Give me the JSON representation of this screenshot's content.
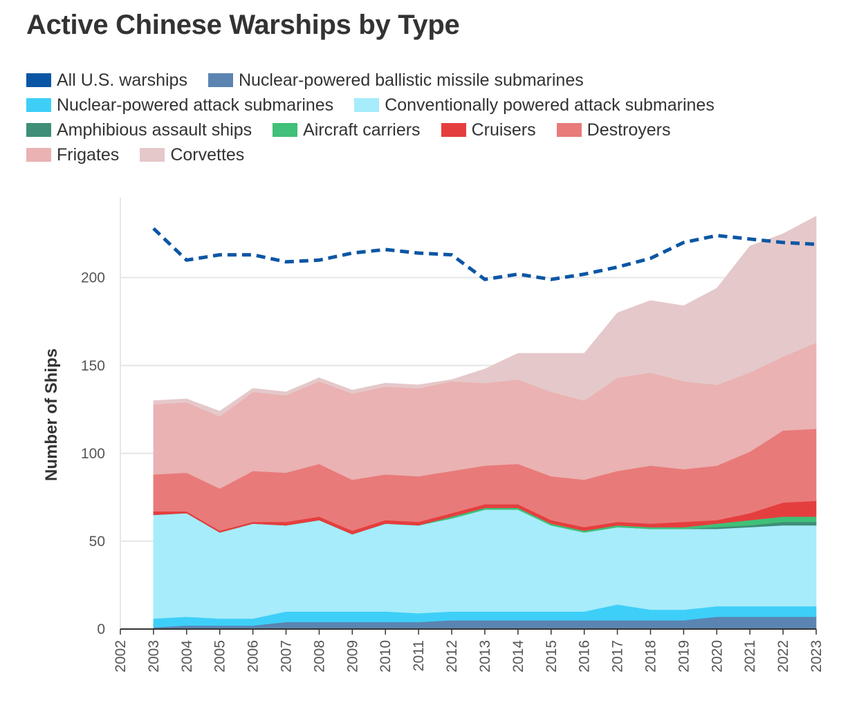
{
  "title": "Active Chinese Warships by Type",
  "legend": [
    {
      "label": "All U.S. warships",
      "color": "#0b56a4"
    },
    {
      "label": "Nuclear-powered ballistic missile submarines",
      "color": "#5b84b1"
    },
    {
      "label": "Nuclear-powered attack submarines",
      "color": "#3ecff8"
    },
    {
      "label": "Conventionally powered attack submarines",
      "color": "#a6ecfb"
    },
    {
      "label": "Amphibious assault ships",
      "color": "#3e8e78"
    },
    {
      "label": "Aircraft carriers",
      "color": "#40c078"
    },
    {
      "label": "Cruisers",
      "color": "#e53e3e"
    },
    {
      "label": "Destroyers",
      "color": "#e97a7a"
    },
    {
      "label": "Frigates",
      "color": "#eab2b2"
    },
    {
      "label": "Corvettes",
      "color": "#e5c8ca"
    }
  ],
  "chart_data": {
    "type": "area",
    "title": "Active Chinese Warships by Type",
    "xlabel": "",
    "ylabel": "Number of Ships",
    "x_ticks": [
      "2002",
      "2003",
      "2004",
      "2005",
      "2006",
      "2007",
      "2008",
      "2009",
      "2010",
      "2011",
      "2012",
      "2013",
      "2014",
      "2015",
      "2016",
      "2017",
      "2018",
      "2019",
      "2020",
      "2021",
      "2022",
      "2023"
    ],
    "y_ticks": [
      "0",
      "50",
      "100",
      "150",
      "200"
    ],
    "ylim": [
      0,
      240
    ],
    "xlim": [
      2002,
      2023
    ],
    "stacked": true,
    "x": [
      2003,
      2004,
      2005,
      2006,
      2007,
      2008,
      2009,
      2010,
      2011,
      2012,
      2013,
      2014,
      2015,
      2016,
      2017,
      2018,
      2019,
      2020,
      2021,
      2022,
      2023
    ],
    "series": [
      {
        "name": "Nuclear-powered ballistic missile submarines",
        "color": "#5b84b1",
        "values": [
          1,
          2,
          2,
          2,
          4,
          4,
          4,
          4,
          4,
          5,
          5,
          5,
          5,
          5,
          5,
          5,
          5,
          7,
          7,
          7,
          7
        ]
      },
      {
        "name": "Nuclear-powered attack submarines",
        "color": "#3ecff8",
        "values": [
          5,
          5,
          4,
          4,
          6,
          6,
          6,
          6,
          5,
          5,
          5,
          5,
          5,
          5,
          9,
          6,
          6,
          6,
          6,
          6,
          6
        ]
      },
      {
        "name": "Conventionally powered attack submarines",
        "color": "#a6ecfb",
        "values": [
          59,
          59,
          49,
          54,
          49,
          52,
          44,
          50,
          50,
          53,
          58,
          58,
          49,
          45,
          44,
          46,
          46,
          44,
          45,
          46,
          46
        ]
      },
      {
        "name": "Amphibious assault ships",
        "color": "#3e8e78",
        "values": [
          0,
          0,
          0,
          0,
          0,
          0,
          0,
          0,
          0,
          0,
          0,
          0,
          0,
          0,
          0,
          0,
          0,
          1,
          1,
          2,
          2
        ]
      },
      {
        "name": "Aircraft carriers",
        "color": "#40c078",
        "values": [
          0,
          0,
          0,
          0,
          0,
          0,
          0,
          0,
          0,
          1,
          1,
          1,
          1,
          1,
          1,
          1,
          1,
          2,
          3,
          3,
          3
        ]
      },
      {
        "name": "Cruisers",
        "color": "#e53e3e",
        "values": [
          2,
          1,
          1,
          1,
          2,
          2,
          2,
          2,
          2,
          2,
          2,
          2,
          2,
          2,
          2,
          2,
          3,
          2,
          4,
          8,
          9
        ]
      },
      {
        "name": "Destroyers",
        "color": "#e97a7a",
        "values": [
          21,
          22,
          24,
          29,
          28,
          30,
          29,
          26,
          26,
          24,
          22,
          23,
          25,
          27,
          29,
          33,
          30,
          31,
          35,
          41,
          41
        ]
      },
      {
        "name": "Frigates",
        "color": "#eab2b2",
        "values": [
          40,
          40,
          41,
          45,
          44,
          47,
          49,
          50,
          50,
          51,
          47,
          48,
          48,
          45,
          53,
          53,
          50,
          46,
          45,
          42,
          49
        ]
      },
      {
        "name": "Corvettes",
        "color": "#e5c8ca",
        "values": [
          2,
          2,
          3,
          2,
          2,
          2,
          2,
          2,
          2,
          1,
          8,
          15,
          22,
          27,
          37,
          41,
          43,
          55,
          72,
          70,
          72
        ]
      }
    ],
    "line_series": {
      "name": "All U.S. warships",
      "color": "#0b56a4",
      "dashed": true,
      "values": [
        228,
        210,
        213,
        213,
        209,
        210,
        214,
        216,
        214,
        213,
        199,
        202,
        199,
        202,
        206,
        211,
        220,
        224,
        222,
        220,
        219
      ]
    }
  }
}
